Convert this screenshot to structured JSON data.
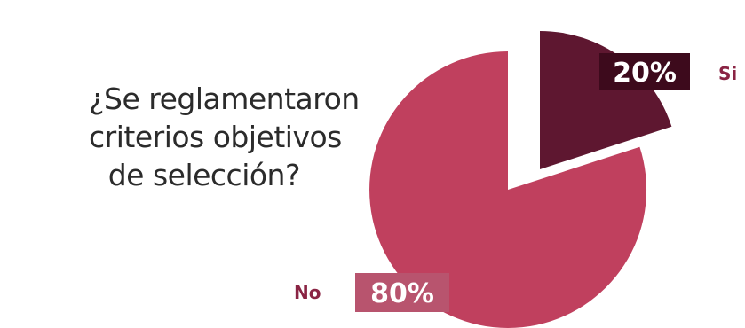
{
  "question": {
    "lines": [
      "¿Se reglamentaron",
      "criterios objetivos",
      "de selección?"
    ]
  },
  "chart_data": {
    "type": "pie",
    "categories": [
      "Si",
      "No"
    ],
    "values": [
      20,
      80
    ],
    "value_labels": [
      "20%",
      "80%"
    ],
    "colors": [
      "#5e1730",
      "#c0405e"
    ],
    "label_box_colors": [
      "#3d0a1c",
      "#b8546e"
    ],
    "category_label_color": "#8a2444",
    "exploded": "Si"
  }
}
